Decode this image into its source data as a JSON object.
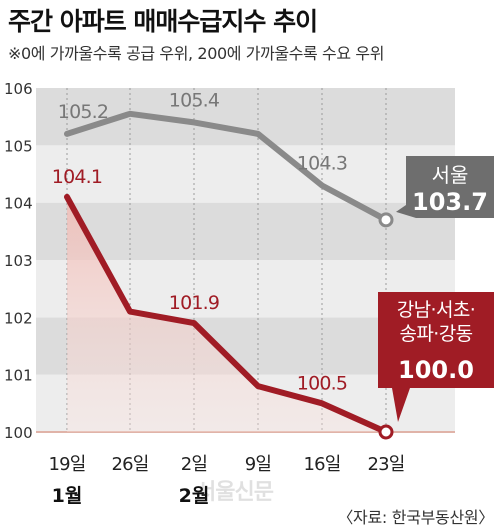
{
  "header": {
    "title": "주간 아파트 매매수급지수 추이",
    "subtitle": "※0에 가까울수록 공급 우위, 200에 가까울수록 수요 우위",
    "source": "〈자료: 한국부동산원〉",
    "watermark": "서울신문"
  },
  "colors": {
    "seoul_line": "#8a8a8a",
    "gangnam_line": "#a01c25",
    "baseline": "#e0b3a8",
    "band_dark": "#dcdcdc",
    "band_light": "#ededed"
  },
  "chart_data": {
    "type": "line",
    "ylim": [
      100,
      106
    ],
    "yticks": [
      "100",
      "101",
      "102",
      "103",
      "104",
      "105",
      "106"
    ],
    "categories": [
      "19일",
      "26일",
      "2일",
      "9일",
      "16일",
      "23일"
    ],
    "month_labels": [
      {
        "index": 0,
        "text": "1월"
      },
      {
        "index": 2,
        "text": "2월"
      }
    ],
    "series": [
      {
        "name": "서울",
        "values": [
          105.2,
          105.55,
          105.4,
          105.2,
          104.3,
          103.7
        ],
        "labels": [
          "105.2",
          "",
          "105.4",
          "",
          "104.3",
          ""
        ],
        "end_label": "103.7"
      },
      {
        "name": "강남·서초·송파·강동",
        "name_lines": [
          "강남·서초·",
          "송파·강동"
        ],
        "values": [
          104.1,
          102.1,
          101.9,
          100.8,
          100.5,
          100.0
        ],
        "labels": [
          "104.1",
          "",
          "101.9",
          "",
          "100.5",
          ""
        ],
        "end_label": "100.0"
      }
    ]
  }
}
